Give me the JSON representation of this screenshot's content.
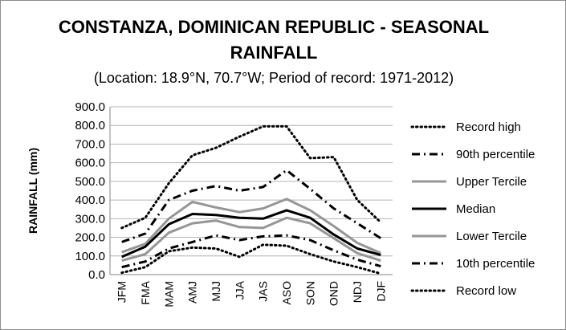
{
  "chart_data": {
    "type": "line",
    "title_line1": "CONSTANZA, DOMINICAN REPUBLIC - SEASONAL",
    "title_line2": "RAINFALL",
    "subtitle": "(Location: 18.9°N, 70.7°W; Period of record: 1971-2012)",
    "xlabel": "",
    "ylabel": "RAINFALL (mm)",
    "ylim": [
      0,
      900
    ],
    "yticks": [
      "0.0",
      "100.0",
      "200.0",
      "300.0",
      "400.0",
      "500.0",
      "600.0",
      "700.0",
      "800.0",
      "900.0"
    ],
    "grid": true,
    "legend_position": "right",
    "categories": [
      "JFM",
      "FMA",
      "MAM",
      "AMJ",
      "MJJ",
      "JJA",
      "JAS",
      "ASO",
      "SON",
      "OND",
      "NDJ",
      "DJF"
    ],
    "series": [
      {
        "name": "Record high",
        "style": "dotted",
        "color": "#000000",
        "values": [
          250,
          305,
          490,
          640,
          680,
          740,
          795,
          795,
          625,
          630,
          400,
          280
        ]
      },
      {
        "name": "90th percentile",
        "style": "dashdot",
        "color": "#000000",
        "values": [
          175,
          220,
          400,
          450,
          475,
          450,
          470,
          560,
          460,
          355,
          275,
          195
        ]
      },
      {
        "name": "Upper Tercile",
        "style": "solid",
        "color": "#969696",
        "values": [
          120,
          165,
          300,
          390,
          360,
          335,
          355,
          405,
          345,
          260,
          170,
          115
        ]
      },
      {
        "name": "Median",
        "style": "solid",
        "color": "#000000",
        "values": [
          95,
          150,
          270,
          325,
          320,
          305,
          300,
          345,
          305,
          215,
          140,
          105
        ]
      },
      {
        "name": "Lower Tercile",
        "style": "solid",
        "color": "#969696",
        "values": [
          75,
          110,
          225,
          275,
          290,
          255,
          250,
          305,
          275,
          195,
          115,
          75
        ]
      },
      {
        "name": "10th percentile",
        "style": "dashdot",
        "color": "#000000",
        "values": [
          40,
          70,
          140,
          175,
          210,
          185,
          205,
          210,
          185,
          130,
          80,
          45
        ]
      },
      {
        "name": "Record low",
        "style": "dotted",
        "color": "#000000",
        "values": [
          10,
          40,
          125,
          145,
          140,
          95,
          160,
          155,
          110,
          70,
          40,
          5
        ]
      }
    ]
  }
}
